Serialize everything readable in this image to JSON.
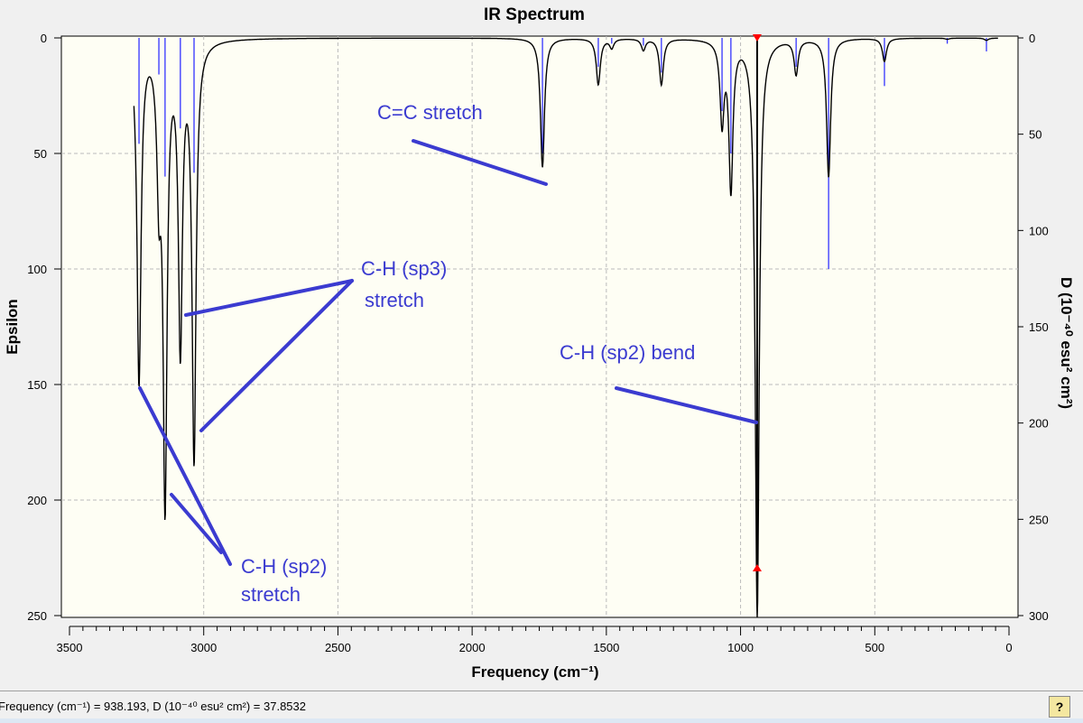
{
  "chart_data": {
    "type": "line",
    "title": "IR Spectrum",
    "xlabel": "Frequency (cm⁻¹)",
    "ylabel": "Epsilon",
    "y2label": "D (10⁻⁴⁰ esu² cm²)",
    "xlim": [
      3500,
      0
    ],
    "ylim": [
      0,
      250
    ],
    "y2lim": [
      0,
      300
    ],
    "y_inverted": true,
    "grid": true,
    "xticks": [
      3500,
      3000,
      2500,
      2000,
      1500,
      1000,
      500,
      0
    ],
    "yticks": [
      0,
      50,
      100,
      150,
      200,
      250
    ],
    "y2ticks": [
      0,
      50,
      100,
      150,
      200,
      250,
      300
    ],
    "peaks": [
      {
        "freq": 3241,
        "epsilon": 148,
        "D": 55
      },
      {
        "freq": 3167,
        "epsilon": 55,
        "D": 19
      },
      {
        "freq": 3144,
        "epsilon": 196,
        "D": 72
      },
      {
        "freq": 3087,
        "epsilon": 130,
        "D": 47
      },
      {
        "freq": 3036,
        "epsilon": 180,
        "D": 70
      },
      {
        "freq": 1738,
        "epsilon": 56,
        "D": 60
      },
      {
        "freq": 1530,
        "epsilon": 20,
        "D": 15
      },
      {
        "freq": 1480,
        "epsilon": 4,
        "D": 3
      },
      {
        "freq": 1362,
        "epsilon": 5,
        "D": 4
      },
      {
        "freq": 1295,
        "epsilon": 20,
        "D": 18
      },
      {
        "freq": 1069,
        "epsilon": 35,
        "D": 38
      },
      {
        "freq": 1036,
        "epsilon": 64,
        "D": 60
      },
      {
        "freq": 938,
        "epsilon": 250,
        "D": 37.85
      },
      {
        "freq": 793,
        "epsilon": 15,
        "D": 15
      },
      {
        "freq": 672,
        "epsilon": 60,
        "D": 120
      },
      {
        "freq": 464,
        "epsilon": 10,
        "D": 25
      },
      {
        "freq": 230,
        "epsilon": 0.5,
        "D": 3
      },
      {
        "freq": 84,
        "epsilon": 1,
        "D": 7
      }
    ],
    "cursor_freq": 938.193,
    "annotations": [
      {
        "text": "C=C  stretch"
      },
      {
        "text": "C-H (sp3)",
        "text2": "stretch"
      },
      {
        "text": "C-H (sp2)",
        "text2": "stretch"
      },
      {
        "text": "C-H (sp2) bend"
      }
    ],
    "colors": {
      "spectrum": "#000000",
      "sticks": "#3333ff",
      "annotation": "#3b3bd0",
      "cursor": "#ff0000",
      "plot_bg": "#fefef4"
    }
  },
  "status": {
    "text": "Frequency (cm⁻¹) = 938.193, D (10⁻⁴⁰ esu² cm²) = 37.8532",
    "help": "?"
  }
}
